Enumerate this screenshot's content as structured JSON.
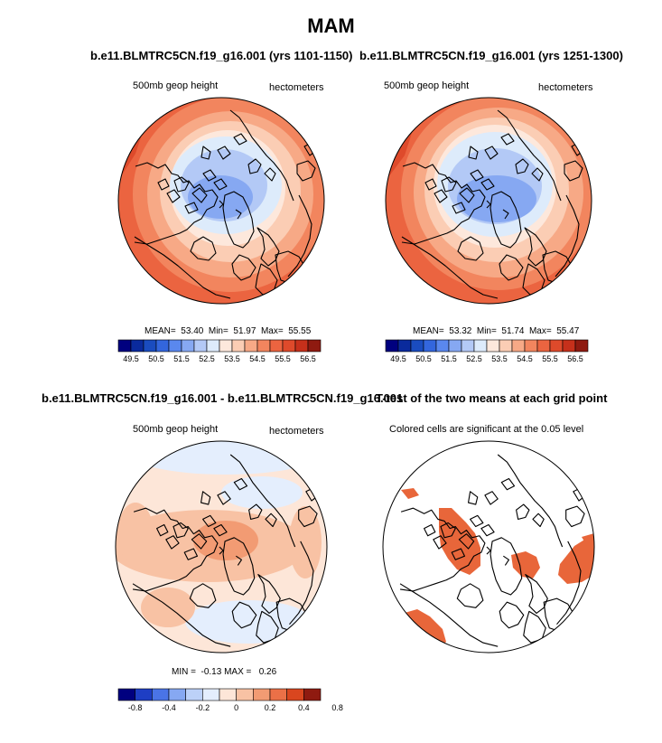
{
  "figure": {
    "title": "MAM"
  },
  "panels": [
    {
      "title": "b.e11.BLMTRC5CN.f19_g16.001 (yrs 1101-1150)",
      "left_label": "500mb geop height",
      "right_label": "hectometers",
      "stats": "MEAN=  53.40  Min=  51.97  Max=  55.55"
    },
    {
      "title": "b.e11.BLMTRC5CN.f19_g16.001 (yrs 1251-1300)",
      "left_label": "500mb geop height",
      "right_label": "hectometers",
      "stats": "MEAN=  53.32  Min=  51.74  Max=  55.47"
    },
    {
      "title": "b.e11.BLMTRC5CN.f19_g16.001 - b.e11.BLMTRC5CN.f19_g16.001",
      "left_label": "500mb geop height",
      "right_label": "hectometers",
      "stats": "MIN =  -0.13 MAX =   0.26"
    },
    {
      "title": "T-test of the two means at each grid point",
      "left_label": "Colored cells are significant at the 0.05 level"
    }
  ],
  "chart_data": [
    {
      "type": "heatmap",
      "projection": "polar-stereographic (north pole)",
      "field": "500mb geop height",
      "units": "hectometers",
      "period": "yrs 1101-1150",
      "mean": 53.4,
      "min": 51.97,
      "max": 55.55,
      "colorbar_levels": [
        49.5,
        50,
        50.5,
        51,
        51.5,
        52,
        52.5,
        53,
        53.5,
        54,
        54.5,
        55,
        55.5,
        56,
        56.5
      ],
      "colorbar_tick_labels": [
        "49.5",
        "50.5",
        "51.5",
        "52.5",
        "53.5",
        "54.5",
        "55.5",
        "56.5"
      ]
    },
    {
      "type": "heatmap",
      "projection": "polar-stereographic (north pole)",
      "field": "500mb geop height",
      "units": "hectometers",
      "period": "yrs 1251-1300",
      "mean": 53.32,
      "min": 51.74,
      "max": 55.47,
      "colorbar_levels": [
        49.5,
        50,
        50.5,
        51,
        51.5,
        52,
        52.5,
        53,
        53.5,
        54,
        54.5,
        55,
        55.5,
        56,
        56.5
      ],
      "colorbar_tick_labels": [
        "49.5",
        "50.5",
        "51.5",
        "52.5",
        "53.5",
        "54.5",
        "55.5",
        "56.5"
      ]
    },
    {
      "type": "heatmap",
      "projection": "polar-stereographic (north pole)",
      "field": "500mb geop height difference",
      "units": "hectometers",
      "min": -0.13,
      "max": 0.26,
      "colorbar_levels": [
        -0.8,
        -0.6,
        -0.4,
        -0.3,
        -0.2,
        -0.1,
        0,
        0.1,
        0.2,
        0.3,
        0.4,
        0.6,
        0.8
      ],
      "colorbar_tick_labels": [
        "-0.8",
        "-0.4",
        "-0.2",
        "0",
        "0.2",
        "0.4",
        "0.8"
      ]
    },
    {
      "type": "heatmap",
      "projection": "polar-stereographic (north pole)",
      "field": "T-test significance mask",
      "significance_level": 0.05
    }
  ],
  "colors": {
    "blues": [
      "#00007f",
      "#0a2a9c",
      "#1a4cbf",
      "#3366dd",
      "#5a88ee",
      "#86a8f2",
      "#b3c9f6",
      "#ddebfb"
    ],
    "reds": [
      "#fde8dc",
      "#fbcdb4",
      "#f7a986",
      "#f2855e",
      "#eb6440",
      "#de4a2b",
      "#c6301b",
      "#8f1a10"
    ],
    "diff_blues": [
      "#00007f",
      "#1e3ec4",
      "#4a74e6",
      "#86a8f2",
      "#bcd1f8",
      "#e4eefd"
    ],
    "diff_reds": [
      "#fde6d8",
      "#f8c2a4",
      "#f29b73",
      "#eb7047",
      "#d9461f",
      "#8f1a10"
    ],
    "signif": "#e8663a"
  }
}
